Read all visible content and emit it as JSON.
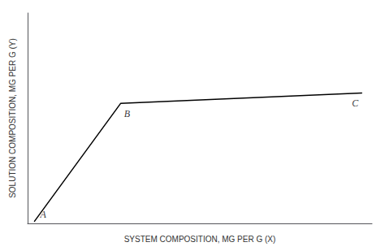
{
  "chart_data": {
    "type": "line",
    "xlabel": "SYSTEM COMPOSITION, MG PER G (X)",
    "ylabel": "SOLUTION COMPOSITION, MG PER G (Y)",
    "x": [
      0.02,
      0.27,
      0.97
    ],
    "values": [
      0.01,
      0.57,
      0.62
    ],
    "color": "#000000",
    "annotations": [
      {
        "text": "A",
        "x": 0.02,
        "y": 0.01
      },
      {
        "text": "B",
        "x": 0.27,
        "y": 0.57
      },
      {
        "text": "C",
        "x": 0.97,
        "y": 0.62
      }
    ],
    "xlim": [
      0,
      1
    ],
    "ylim": [
      0,
      1
    ],
    "tick_labels": false,
    "grid": false
  }
}
